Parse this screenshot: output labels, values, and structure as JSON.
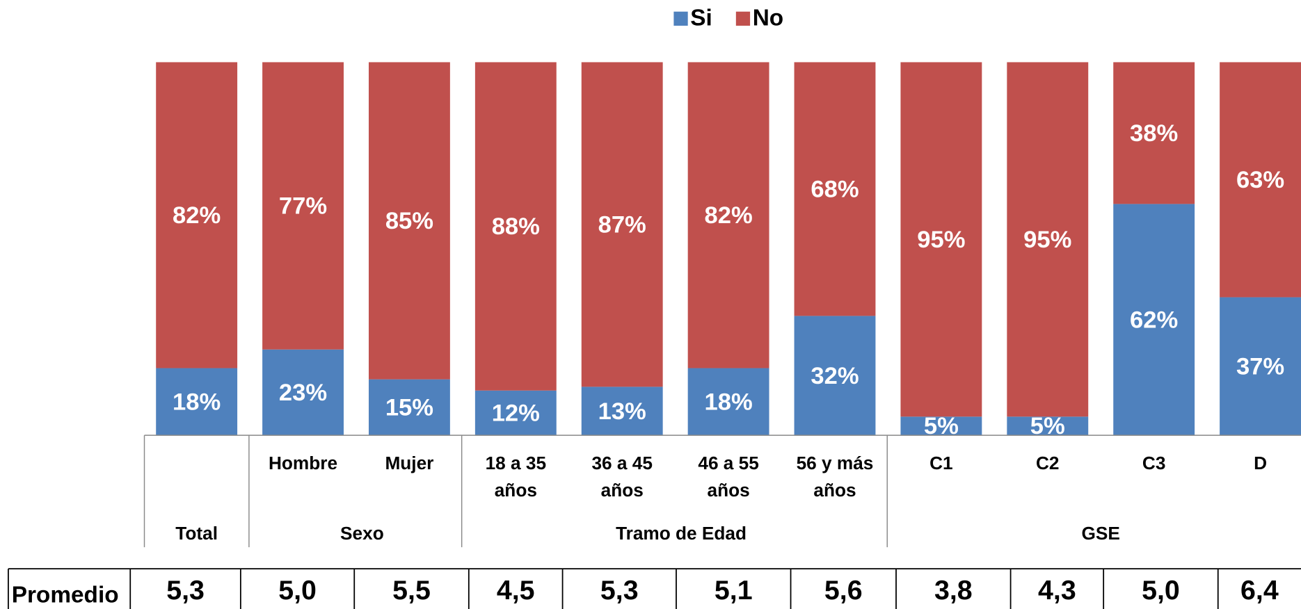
{
  "chart_data": {
    "type": "stacked_bar_percent",
    "categories": [
      null,
      "Hombre",
      "Mujer",
      "18 a 35 años",
      "36 a 45 años",
      "46 a 55 años",
      "56 y más años",
      "C1",
      "C2",
      "C3",
      "D"
    ],
    "groups": [
      {
        "name": "Total",
        "size": 1
      },
      {
        "name": "Sexo",
        "size": 2
      },
      {
        "name": "Tramo de Edad",
        "size": 4
      },
      {
        "name": "GSE",
        "size": 4
      }
    ],
    "series": [
      {
        "name": "Si",
        "color": "#4f81bd",
        "values": [
          18,
          23,
          15,
          12,
          13,
          18,
          32,
          5,
          5,
          62,
          37
        ],
        "value_labels": [
          "18%",
          "23%",
          "15%",
          "12%",
          "13%",
          "18%",
          "32%",
          "5%",
          "5%",
          "62%",
          "37%"
        ]
      },
      {
        "name": "No",
        "color": "#c0504d",
        "values": [
          82,
          77,
          85,
          88,
          87,
          82,
          68,
          95,
          95,
          38,
          63
        ],
        "value_labels": [
          "82%",
          "77%",
          "85%",
          "88%",
          "87%",
          "82%",
          "68%",
          "95%",
          "95%",
          "38%",
          "63%"
        ]
      }
    ],
    "ylim": [
      0,
      100
    ],
    "legend": "top"
  },
  "table": {
    "label": "Promedio",
    "values": [
      "5,3",
      "5,0",
      "5,5",
      "4,5",
      "5,3",
      "5,1",
      "5,6",
      "3,8",
      "4,3",
      "5,0",
      "6,4"
    ]
  }
}
